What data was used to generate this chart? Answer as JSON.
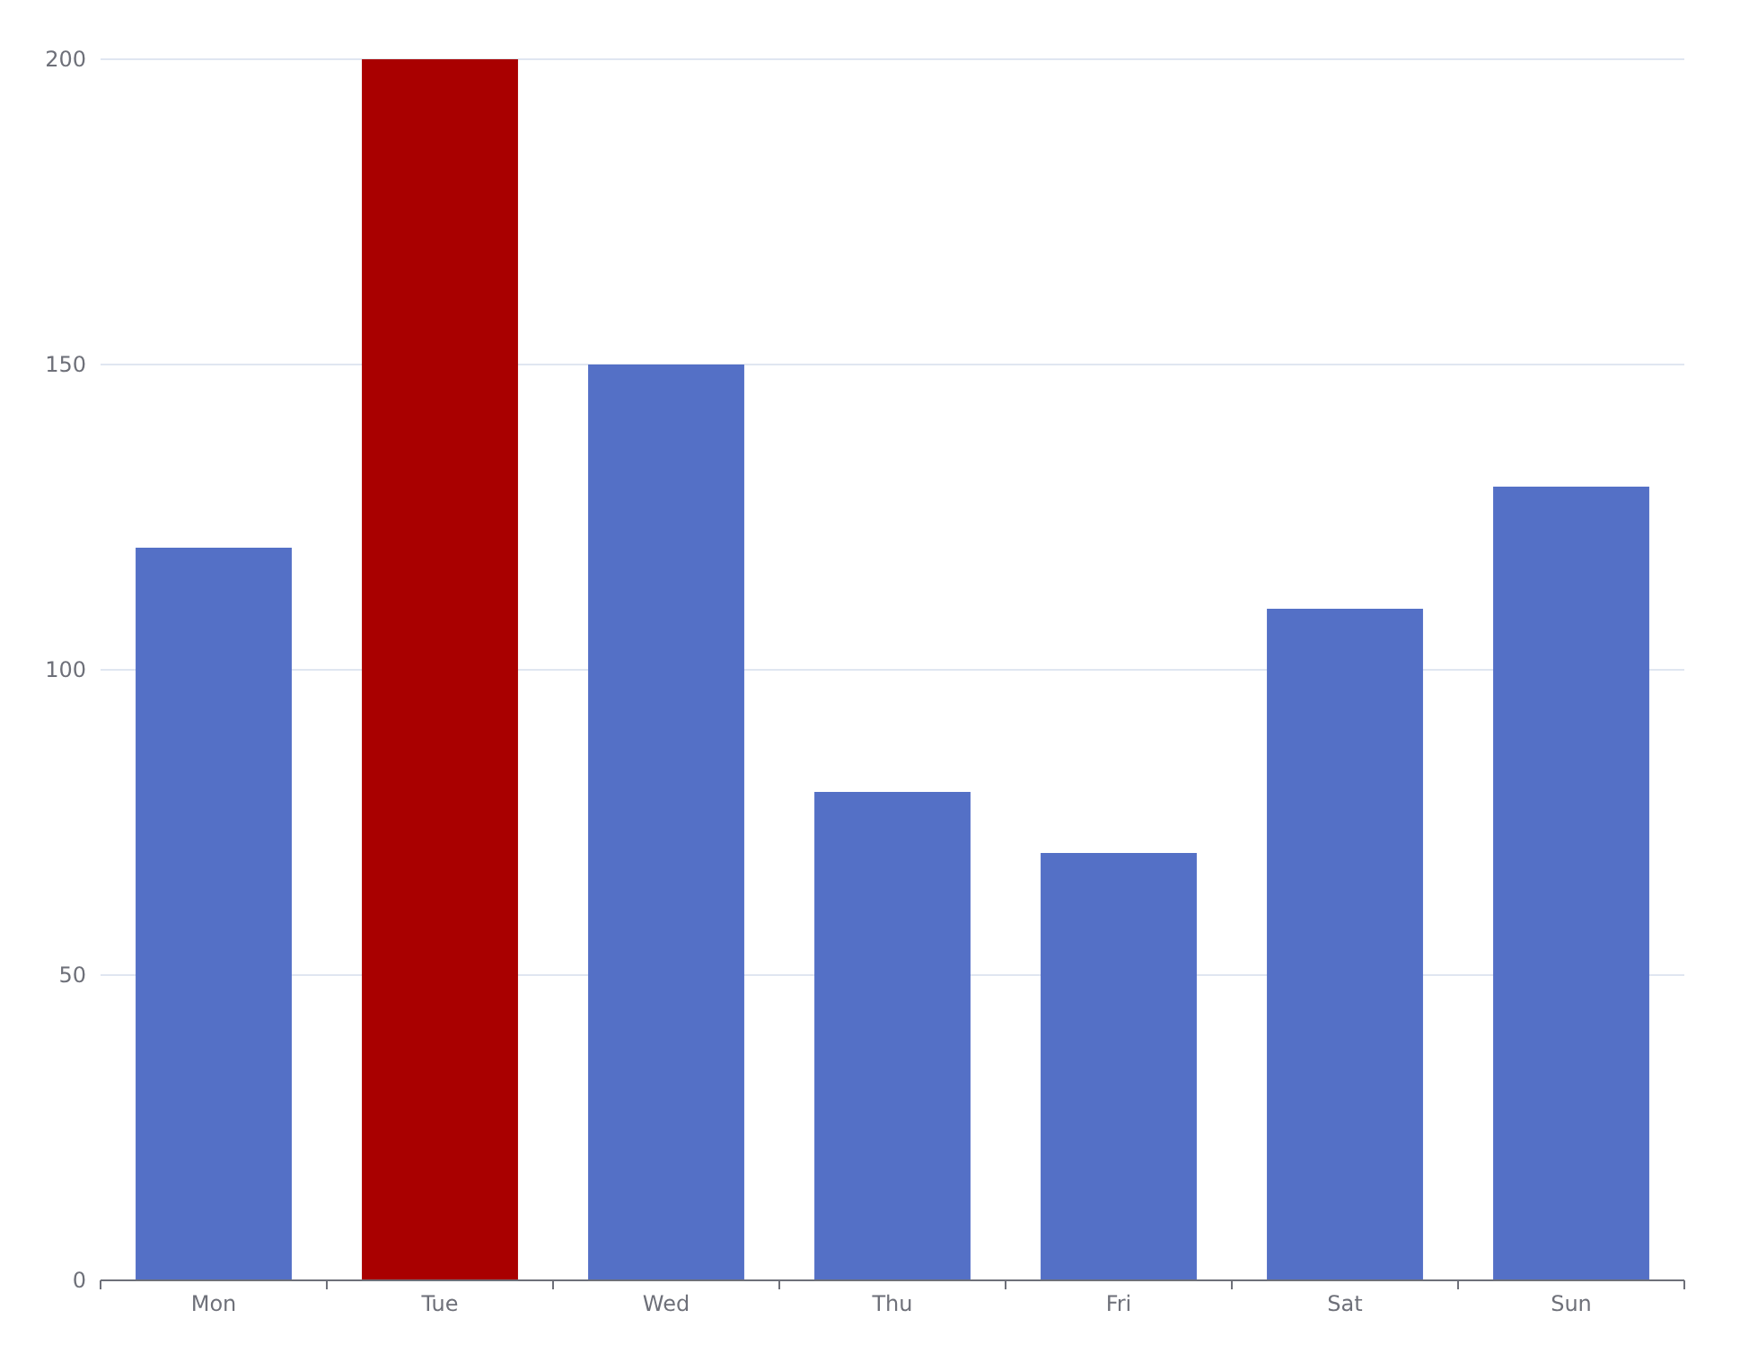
{
  "chart_data": {
    "type": "bar",
    "categories": [
      "Mon",
      "Tue",
      "Wed",
      "Thu",
      "Fri",
      "Sat",
      "Sun"
    ],
    "values": [
      120,
      200,
      150,
      80,
      70,
      110,
      130
    ],
    "colors": [
      "#5470c6",
      "#a90000",
      "#5470c6",
      "#5470c6",
      "#5470c6",
      "#5470c6",
      "#5470c6"
    ],
    "ylim": [
      0,
      200
    ],
    "yticks": [
      0,
      50,
      100,
      150,
      200
    ],
    "grid": "y"
  }
}
